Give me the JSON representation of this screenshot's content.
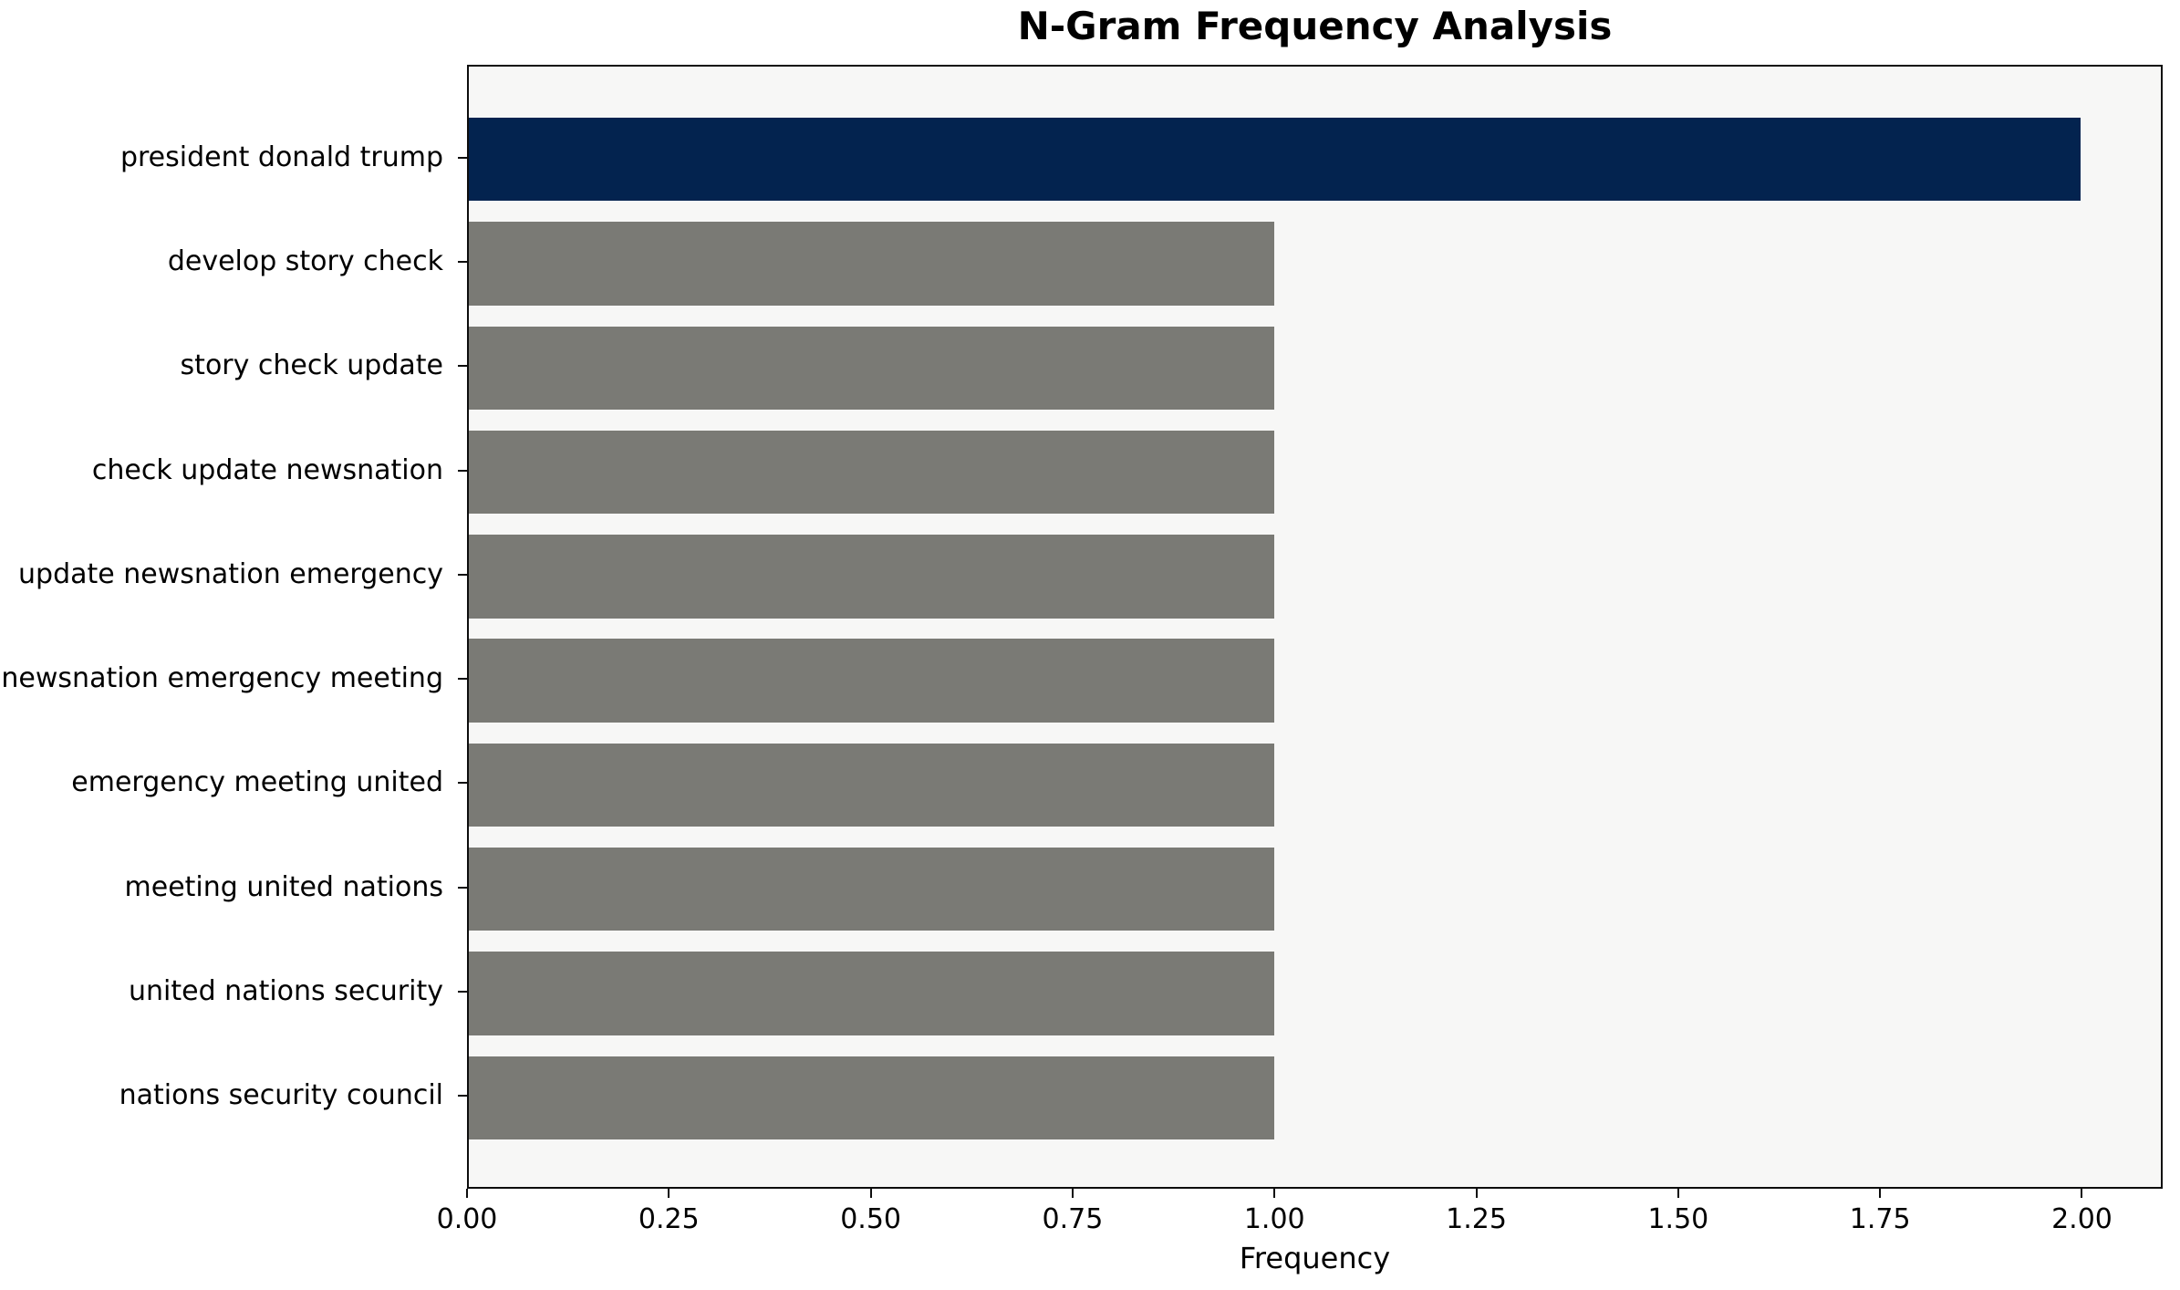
{
  "chart_data": {
    "type": "bar",
    "orientation": "horizontal",
    "title": "N-Gram Frequency Analysis",
    "xlabel": "Frequency",
    "ylabel": "",
    "categories": [
      "president donald trump",
      "develop story check",
      "story check update",
      "check update newsnation",
      "update newsnation emergency",
      "newsnation emergency meeting",
      "emergency meeting united",
      "meeting united nations",
      "united nations security",
      "nations security council"
    ],
    "values": [
      2,
      1,
      1,
      1,
      1,
      1,
      1,
      1,
      1,
      1
    ],
    "bar_colors": [
      "#03234f",
      "#7a7a75",
      "#7a7a75",
      "#7a7a75",
      "#7a7a75",
      "#7a7a75",
      "#7a7a75",
      "#7a7a75",
      "#7a7a75",
      "#7a7a75"
    ],
    "bar_thickness_units": 0.8,
    "xlim": [
      0,
      2.1
    ],
    "ylim": [
      -0.89,
      9.89
    ],
    "xticks": [
      0,
      0.25,
      0.5,
      0.75,
      1.0,
      1.25,
      1.5,
      1.75,
      2.0
    ],
    "xtick_labels": [
      "0.00",
      "0.25",
      "0.50",
      "0.75",
      "1.00",
      "1.25",
      "1.50",
      "1.75",
      "2.00"
    ],
    "grid": false,
    "legend": null,
    "plot_background": "#f7f7f6",
    "figure_background": "#ffffff",
    "highlight_color": "#03234f",
    "default_bar_color": "#7a7a75"
  }
}
